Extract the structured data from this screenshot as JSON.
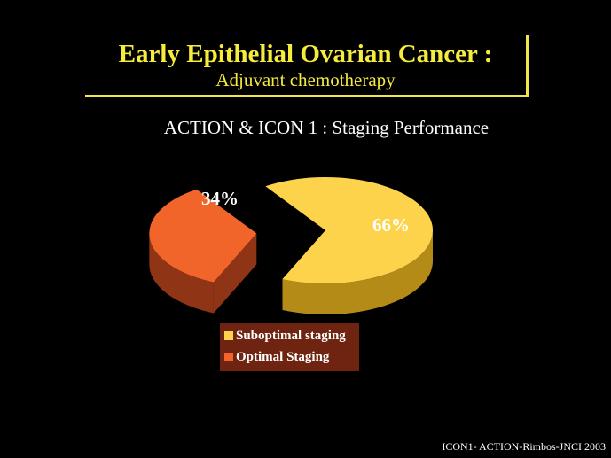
{
  "slide": {
    "title": "Early Epithelial Ovarian Cancer :",
    "subtitle_line": "Adjuvant chemotherapy",
    "heading": "ACTION & ICON 1 : Staging Performance",
    "footer": "ICON1- ACTION-Rimbos-JNCI 2003"
  },
  "colors": {
    "background": "#000000",
    "title": "#f6ec3c",
    "legend_box": "#6e2410"
  },
  "chart_data": {
    "type": "pie",
    "title": "",
    "labels": [
      "Suboptimal staging",
      "Optimal Staging"
    ],
    "values": [
      66,
      34
    ],
    "data_labels": [
      "66%",
      "34%"
    ],
    "colors": [
      "#fcd34a",
      "#f2652a"
    ],
    "side_colors": [
      "#b58b18",
      "#8f3414"
    ],
    "legend_position": "bottom",
    "three_d": true,
    "exploded": "Optimal Staging"
  }
}
